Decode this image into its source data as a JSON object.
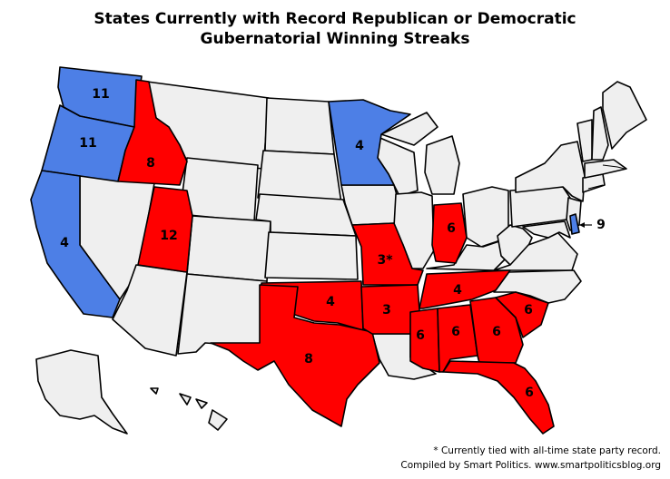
{
  "title_line1": "States Currently with Record Republican or Democratic",
  "title_line2": "Gubernatorial Winning Streaks",
  "colors": {
    "republican": "#ff0000",
    "democratic": "#4d7fe6",
    "none": "#efefef",
    "border": "#000000"
  },
  "states": {
    "WA": {
      "party": "democratic",
      "streak": "11"
    },
    "OR": {
      "party": "democratic",
      "streak": "11"
    },
    "CA": {
      "party": "democratic",
      "streak": "4"
    },
    "MN": {
      "party": "democratic",
      "streak": "4"
    },
    "DE": {
      "party": "democratic",
      "streak": "9"
    },
    "ID": {
      "party": "republican",
      "streak": "8"
    },
    "UT": {
      "party": "republican",
      "streak": "12"
    },
    "TX": {
      "party": "republican",
      "streak": "8"
    },
    "OK": {
      "party": "republican",
      "streak": "4"
    },
    "MO": {
      "party": "republican",
      "streak": "3*"
    },
    "AR": {
      "party": "republican",
      "streak": "3"
    },
    "IN": {
      "party": "republican",
      "streak": "6"
    },
    "TN": {
      "party": "republican",
      "streak": "4"
    },
    "MS": {
      "party": "republican",
      "streak": "6"
    },
    "AL": {
      "party": "republican",
      "streak": "6"
    },
    "GA": {
      "party": "republican",
      "streak": "6"
    },
    "SC": {
      "party": "republican",
      "streak": "6"
    },
    "FL": {
      "party": "republican",
      "streak": "6"
    }
  },
  "footnote": "* Currently tied with all-time state party record.",
  "credit": "Compiled by Smart Politics. www.smartpoliticsblog.org"
}
